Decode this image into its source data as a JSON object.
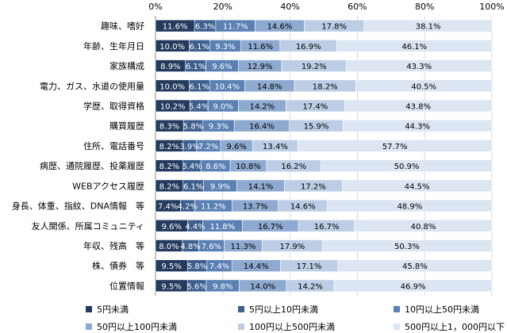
{
  "chart_data": {
    "type": "bar",
    "orientation": "horizontal",
    "stacked": true,
    "percent": true,
    "categories": [
      "趣味、嗜好",
      "年齢、生年月日",
      "家族構成",
      "電力、ガス、水道の使用量",
      "学歴、取得資格",
      "購買履歴",
      "住所、電話番号",
      "病歴、通院履歴、投薬履歴",
      "WEBアクセス履歴",
      "身長、体重、指紋、DNA情報　等",
      "友人関係、所属コミュニティ",
      "年収、残高　等",
      "株、債券　等",
      "位置情報"
    ],
    "series": [
      {
        "name": "5円未満",
        "color": "#243a5e",
        "label_color": "#ffffff",
        "values": [
          11.6,
          10.0,
          8.9,
          10.0,
          10.2,
          8.3,
          8.2,
          8.2,
          8.2,
          7.4,
          9.6,
          8.0,
          9.5,
          9.5
        ],
        "labels": [
          "11.6%",
          "10.0%",
          "8.9%",
          "10.0%",
          "10.2%",
          "8.3%",
          "8.2%",
          "8.2%",
          "8.2%",
          "7.4%",
          "9.6%",
          "8.0%",
          "9.5%",
          "9.5%"
        ]
      },
      {
        "name": "5円以上10円未満",
        "color": "#3d5f8e",
        "label_color": "#ffffff",
        "values": [
          6.3,
          6.1,
          6.1,
          6.1,
          5.4,
          5.8,
          3.9,
          5.4,
          6.1,
          4.2,
          4.4,
          4.8,
          5.8,
          5.6
        ],
        "labels": [
          "6.3%",
          "6.1%",
          "6.1%",
          "6.1%",
          "5.4%",
          "5.8%",
          "3.9%",
          "5.4%",
          "6.1%",
          "4.2%",
          "4.4%",
          "4.8%",
          "5.8%",
          "5.6%"
        ]
      },
      {
        "name": "10円以上50円未満",
        "color": "#5a80b4",
        "label_color": "#ffffff",
        "values": [
          11.7,
          9.3,
          9.6,
          10.4,
          9.0,
          9.3,
          7.2,
          8.6,
          9.9,
          11.2,
          11.8,
          7.6,
          7.4,
          9.8
        ],
        "labels": [
          "11.7%",
          "9.3%",
          "9.6%",
          "10.4%",
          "9.0%",
          "9.3%",
          "7.2%",
          "8.6%",
          "9.9%",
          "11.2%",
          "11.8%",
          "7.6%",
          "7.4%",
          "9.8%"
        ]
      },
      {
        "name": "50円以上100円未満",
        "color": "#8eaad0",
        "label_color": "#000000",
        "values": [
          14.6,
          11.6,
          12.9,
          14.8,
          14.2,
          16.4,
          9.6,
          10.8,
          14.1,
          13.7,
          16.7,
          11.3,
          14.4,
          14.0
        ],
        "labels": [
          "14.6%",
          "11.6%",
          "12.9%",
          "14.8%",
          "14.2%",
          "16.4%",
          "9.6%",
          "10.8%",
          "14.1%",
          "13.7%",
          "16.7%",
          "11.3%",
          "14.4%",
          "14.0%"
        ]
      },
      {
        "name": "100円以上500円未満",
        "color": "#bccde5",
        "label_color": "#000000",
        "values": [
          17.8,
          16.9,
          19.2,
          18.2,
          17.4,
          15.9,
          13.4,
          16.2,
          17.2,
          14.6,
          16.7,
          17.9,
          17.1,
          14.2
        ],
        "labels": [
          "17.8%",
          "16.9%",
          "19.2%",
          "18.2%",
          "17.4%",
          "15.9%",
          "13.4%",
          "16.2%",
          "17.2%",
          "14.6%",
          "16.7%",
          "17.9%",
          "17.1%",
          "14.2%"
        ]
      },
      {
        "name": "500円以上1，000円以下",
        "color": "#dce5f2",
        "label_color": "#000000",
        "values": [
          38.1,
          46.1,
          43.3,
          40.5,
          43.8,
          44.3,
          57.7,
          50.9,
          44.5,
          48.9,
          40.8,
          50.3,
          45.8,
          46.9
        ],
        "labels": [
          "38.1%",
          "46.1%",
          "43.3%",
          "40.5%",
          "43.8%",
          "44.3%",
          "57.7%",
          "50.9%",
          "44.5%",
          "48.9%",
          "40.8%",
          "50.3%",
          "45.8%",
          "46.9%"
        ]
      }
    ],
    "xlim": [
      0,
      100
    ],
    "x_ticks": [
      0,
      20,
      40,
      60,
      80,
      100
    ],
    "x_tick_labels": [
      "0%",
      "20%",
      "40%",
      "60%",
      "80%",
      "100%"
    ],
    "xaxis_position": "top",
    "grid": true,
    "legend_position": "bottom"
  }
}
